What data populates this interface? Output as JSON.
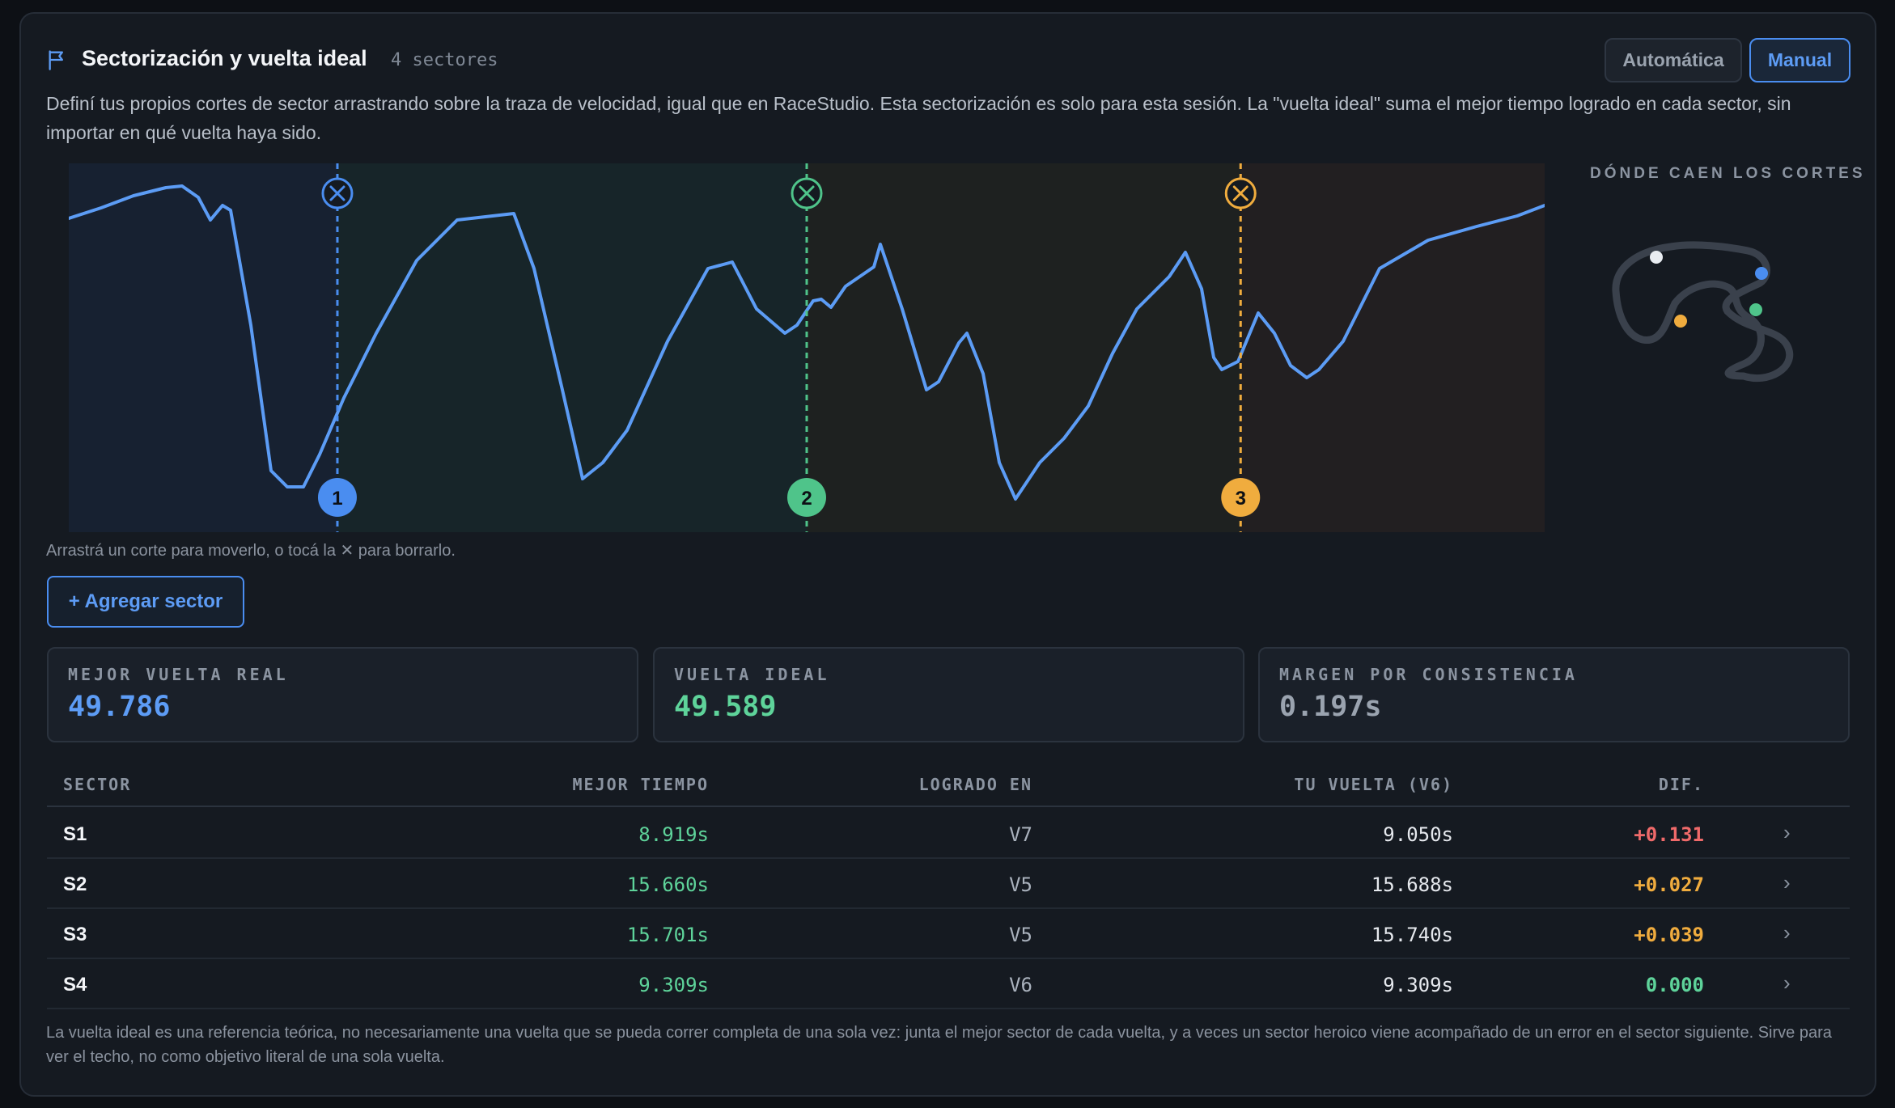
{
  "header": {
    "title": "Sectorización y vuelta ideal",
    "sector_count": "4 sectores",
    "mode_auto": "Automática",
    "mode_manual": "Manual",
    "active_mode": "Manual"
  },
  "description": "Definí tus propios cortes de sector arrastrando sobre la traza de velocidad, igual que en RaceStudio. Esta sectorización es solo para esta sesión. La \"vuelta ideal\" suma el mejor tiempo logrado en cada sector, sin importar en qué vuelta haya sido.",
  "chart": {
    "cuts": [
      {
        "label": "1",
        "color": "#4a8df0",
        "fraction": 0.182
      },
      {
        "label": "2",
        "color": "#4fc48a",
        "fraction": 0.5
      },
      {
        "label": "3",
        "color": "#f0ac3e",
        "fraction": 0.794
      }
    ],
    "sector_tints": [
      "#172131",
      "#172529",
      "#1e2120",
      "#221f21"
    ],
    "trace_color": "#5c9cf5"
  },
  "map": {
    "title": "DÓNDE CAEN LOS CORTES",
    "dot_colors": [
      "#e8ecf1",
      "#4a8df0",
      "#4fc48a",
      "#f0ac3e"
    ]
  },
  "hint": "Arrastrá un corte para moverlo, o tocá la ✕ para borrarlo.",
  "add_sector_button": "+ Agregar sector",
  "stats": [
    {
      "label": "MEJOR VUELTA REAL",
      "value": "49.786",
      "color": "#5d9cf5"
    },
    {
      "label": "VUELTA IDEAL",
      "value": "49.589",
      "color": "#5ed39a"
    },
    {
      "label": "MARGEN POR CONSISTENCIA",
      "value": "0.197s",
      "color": "#9aa3af"
    }
  ],
  "table": {
    "headers": {
      "sector": "SECTOR",
      "best": "MEJOR TIEMPO",
      "lap": "LOGRADO EN",
      "yours": "TU VUELTA (V6)",
      "dif": "DIF."
    },
    "rows": [
      {
        "sector": "S1",
        "best": "8.919s",
        "lap": "V7",
        "yours": "9.050s",
        "dif": "+0.131",
        "dif_color": "#f06a6a"
      },
      {
        "sector": "S2",
        "best": "15.660s",
        "lap": "V5",
        "yours": "15.688s",
        "dif": "+0.027",
        "dif_color": "#f0ac3e"
      },
      {
        "sector": "S3",
        "best": "15.701s",
        "lap": "V5",
        "yours": "15.740s",
        "dif": "+0.039",
        "dif_color": "#f0ac3e"
      },
      {
        "sector": "S4",
        "best": "9.309s",
        "lap": "V6",
        "yours": "9.309s",
        "dif": "0.000",
        "dif_color": "#5ed39a"
      }
    ]
  },
  "footnote": "La vuelta ideal es una referencia teórica, no necesariamente una vuelta que se pueda correr completa de una sola vez: junta el mejor sector de cada vuelta, y a veces un sector heroico viene acompañado de un error en el sector siguiente. Sirve para ver el techo, no como objetivo literal de una sola vuelta."
}
